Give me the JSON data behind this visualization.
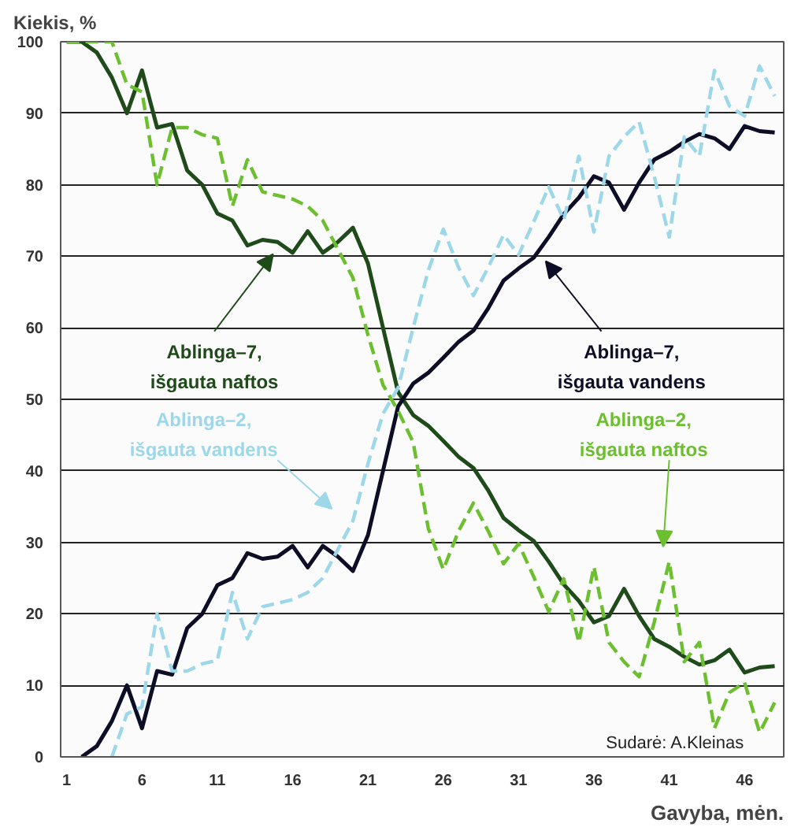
{
  "chart_data": {
    "type": "line",
    "ylabel": "Kiekis, %",
    "xlabel": "Gavyba, mėn.",
    "x": [
      1,
      2,
      3,
      4,
      5,
      6,
      7,
      8,
      9,
      10,
      11,
      12,
      13,
      14,
      15,
      16,
      17,
      18,
      19,
      20,
      21,
      22,
      23,
      24,
      25,
      26,
      27,
      28,
      29,
      30,
      31,
      32,
      33,
      34,
      35,
      36,
      37,
      38,
      39,
      40,
      41,
      42,
      43,
      44,
      45,
      46,
      47,
      48
    ],
    "xlim": [
      0.6,
      48.6
    ],
    "ylim": [
      0,
      100
    ],
    "xticks": [
      1,
      6,
      11,
      16,
      21,
      26,
      31,
      36,
      41,
      46
    ],
    "yticks": [
      0,
      10,
      20,
      30,
      40,
      50,
      60,
      70,
      80,
      90,
      100
    ],
    "grid": "y",
    "marker": "none",
    "series": [
      {
        "name": "Ablinga–7,\nišgauta naftos",
        "color": "#1f4a1a",
        "line_style": "solid",
        "values": [
          100,
          100,
          98.5,
          95,
          90,
          96,
          88,
          88.5,
          82,
          80,
          76,
          75,
          71.5,
          72.3,
          72,
          70.5,
          73.5,
          70.5,
          72,
          74,
          69,
          60,
          51,
          47.8,
          46.3,
          44.2,
          42,
          40.4,
          37.2,
          33.4,
          31.7,
          30.2,
          27.3,
          24.1,
          21.8,
          18.8,
          19.7,
          23.5,
          19.7,
          16.5,
          15.4,
          14,
          12.9,
          13.5,
          15,
          11.8,
          12.5,
          12.7
        ]
      },
      {
        "name": "Ablinga–7,\nišgauta vandens",
        "color": "#0d0d26",
        "line_style": "solid",
        "values": [
          null,
          0,
          1.5,
          5,
          10,
          4,
          12,
          11.5,
          18,
          20,
          24,
          25,
          28.5,
          27.7,
          28,
          29.5,
          26.5,
          29.5,
          28,
          26,
          31,
          40,
          49,
          52.2,
          53.7,
          55.8,
          58,
          59.6,
          62.8,
          66.6,
          68.3,
          69.8,
          72.7,
          75.9,
          78.2,
          81.2,
          80.3,
          76.5,
          80.3,
          83.5,
          84.6,
          86,
          87.1,
          86.5,
          85,
          88.2,
          87.5,
          87.3
        ]
      },
      {
        "name": "Ablinga–2,\nišgauta vandens",
        "color": "#9dd7ea",
        "line_style": "dashed",
        "values": [
          null,
          null,
          null,
          0,
          6,
          7,
          20,
          12,
          12,
          13,
          13.5,
          23,
          16.5,
          21,
          21.5,
          22,
          23,
          25,
          29,
          33,
          41,
          48,
          51.6,
          60,
          68,
          73.8,
          68.5,
          64.5,
          68.5,
          73,
          70.2,
          74.8,
          79.7,
          75.1,
          84,
          73.4,
          84,
          86.7,
          88.8,
          81.2,
          72.7,
          86.7,
          84,
          96,
          91,
          89.6,
          96.6,
          92.4
        ]
      },
      {
        "name": "Ablinga–2,\nišgauta naftos",
        "color": "#6cbf2e",
        "line_style": "dashed",
        "values": [
          100,
          100,
          100,
          100,
          94,
          93,
          80,
          88,
          88,
          87,
          86.5,
          77,
          83.5,
          79,
          78.5,
          78,
          77,
          75,
          71,
          67,
          59,
          52,
          48.4,
          44,
          32,
          26.2,
          31.5,
          35.5,
          31.5,
          27,
          29.8,
          25.2,
          20.3,
          24.9,
          16,
          26.6,
          16,
          13.3,
          11.2,
          18.8,
          27.3,
          13.3,
          16,
          4,
          9,
          10.4,
          3.4,
          7.6
        ]
      }
    ],
    "annotations": [
      "Sudarė: A.Kleinas"
    ]
  }
}
